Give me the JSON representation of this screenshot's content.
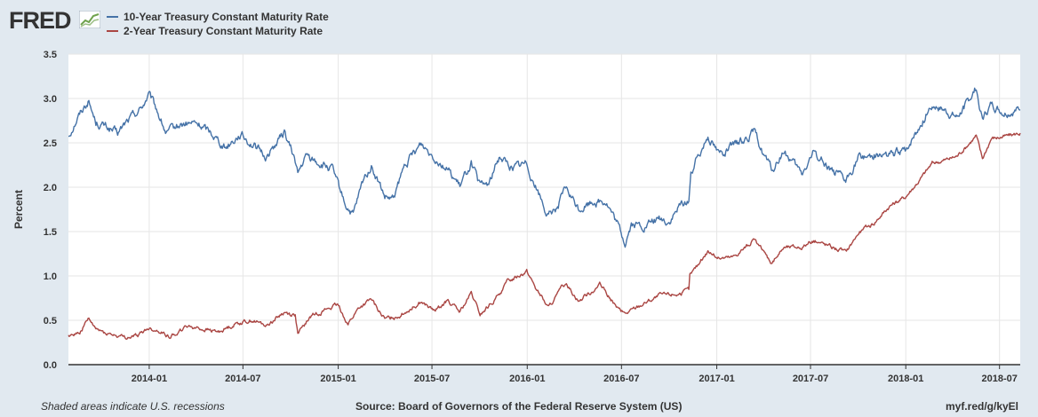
{
  "header": {
    "logo_text": "FRED"
  },
  "legend": [
    {
      "label": "10-Year Treasury Constant Maturity Rate",
      "color": "#4572a7"
    },
    {
      "label": "2-Year Treasury Constant Maturity Rate",
      "color": "#aa4643"
    }
  ],
  "footer": {
    "left": "Shaded areas indicate U.S. recessions",
    "center": "Source: Board of Governors of the Federal Reserve System (US)",
    "right": "myf.red/g/kyEl"
  },
  "chart_data": {
    "type": "line",
    "ylabel": "Percent",
    "ylim": [
      0.0,
      3.5
    ],
    "yticks": [
      "0.0",
      "0.5",
      "1.0",
      "1.5",
      "2.0",
      "2.5",
      "3.0",
      "3.5"
    ],
    "xlim": [
      "2013-07-29",
      "2018-08-10"
    ],
    "xticks": [
      "2014-01",
      "2014-07",
      "2015-01",
      "2015-07",
      "2016-01",
      "2016-07",
      "2017-01",
      "2017-07",
      "2018-01",
      "2018-07"
    ],
    "grid": true,
    "legend_position": "top-left",
    "series": [
      {
        "name": "10-Year Treasury Constant Maturity Rate",
        "color": "#4572a7",
        "points": [
          [
            "2013-07-29",
            2.58
          ],
          [
            "2013-08-15",
            2.78
          ],
          [
            "2013-09-05",
            2.98
          ],
          [
            "2013-09-20",
            2.73
          ],
          [
            "2013-10-10",
            2.68
          ],
          [
            "2013-11-01",
            2.6
          ],
          [
            "2013-11-20",
            2.75
          ],
          [
            "2013-12-15",
            2.88
          ],
          [
            "2013-12-31",
            3.04
          ],
          [
            "2014-01-15",
            2.88
          ],
          [
            "2014-02-03",
            2.6
          ],
          [
            "2014-03-01",
            2.7
          ],
          [
            "2014-04-01",
            2.72
          ],
          [
            "2014-05-01",
            2.62
          ],
          [
            "2014-05-28",
            2.45
          ],
          [
            "2014-06-25",
            2.6
          ],
          [
            "2014-07-20",
            2.48
          ],
          [
            "2014-08-15",
            2.34
          ],
          [
            "2014-09-19",
            2.62
          ],
          [
            "2014-10-10",
            2.3
          ],
          [
            "2014-10-15",
            2.15
          ],
          [
            "2014-11-01",
            2.35
          ],
          [
            "2014-12-01",
            2.25
          ],
          [
            "2014-12-20",
            2.2
          ],
          [
            "2015-01-15",
            1.8
          ],
          [
            "2015-01-30",
            1.68
          ],
          [
            "2015-02-20",
            2.1
          ],
          [
            "2015-03-06",
            2.24
          ],
          [
            "2015-04-01",
            1.88
          ],
          [
            "2015-04-17",
            1.85
          ],
          [
            "2015-05-10",
            2.25
          ],
          [
            "2015-06-10",
            2.49
          ],
          [
            "2015-07-06",
            2.35
          ],
          [
            "2015-08-01",
            2.2
          ],
          [
            "2015-08-24",
            2.0
          ],
          [
            "2015-09-15",
            2.28
          ],
          [
            "2015-10-02",
            2.0
          ],
          [
            "2015-10-20",
            2.05
          ],
          [
            "2015-11-09",
            2.36
          ],
          [
            "2015-12-01",
            2.22
          ],
          [
            "2015-12-31",
            2.27
          ],
          [
            "2016-01-20",
            1.98
          ],
          [
            "2016-02-11",
            1.66
          ],
          [
            "2016-03-01",
            1.8
          ],
          [
            "2016-03-15",
            1.98
          ],
          [
            "2016-04-10",
            1.75
          ],
          [
            "2016-05-10",
            1.85
          ],
          [
            "2016-06-01",
            1.84
          ],
          [
            "2016-06-24",
            1.56
          ],
          [
            "2016-07-08",
            1.37
          ],
          [
            "2016-07-20",
            1.58
          ],
          [
            "2016-08-15",
            1.55
          ],
          [
            "2016-09-10",
            1.65
          ],
          [
            "2016-10-01",
            1.6
          ],
          [
            "2016-10-25",
            1.8
          ],
          [
            "2016-11-08",
            1.86
          ],
          [
            "2016-11-12",
            2.15
          ],
          [
            "2016-12-15",
            2.6
          ],
          [
            "2017-01-05",
            2.38
          ],
          [
            "2017-02-01",
            2.45
          ],
          [
            "2017-03-13",
            2.62
          ],
          [
            "2017-04-18",
            2.18
          ],
          [
            "2017-05-10",
            2.4
          ],
          [
            "2017-06-14",
            2.14
          ],
          [
            "2017-07-07",
            2.39
          ],
          [
            "2017-08-01",
            2.26
          ],
          [
            "2017-09-07",
            2.05
          ],
          [
            "2017-10-01",
            2.33
          ],
          [
            "2017-11-01",
            2.37
          ],
          [
            "2017-12-01",
            2.36
          ],
          [
            "2017-12-31",
            2.41
          ],
          [
            "2018-01-25",
            2.65
          ],
          [
            "2018-02-21",
            2.94
          ],
          [
            "2018-03-20",
            2.85
          ],
          [
            "2018-04-10",
            2.78
          ],
          [
            "2018-05-17",
            3.11
          ],
          [
            "2018-05-29",
            2.77
          ],
          [
            "2018-06-15",
            2.93
          ],
          [
            "2018-07-10",
            2.84
          ],
          [
            "2018-08-10",
            2.87
          ]
        ]
      },
      {
        "name": "2-Year Treasury Constant Maturity Rate",
        "color": "#aa4643",
        "points": [
          [
            "2013-07-29",
            0.33
          ],
          [
            "2013-08-20",
            0.36
          ],
          [
            "2013-09-05",
            0.51
          ],
          [
            "2013-09-20",
            0.4
          ],
          [
            "2013-10-20",
            0.34
          ],
          [
            "2013-11-15",
            0.3
          ],
          [
            "2013-12-10",
            0.33
          ],
          [
            "2013-12-31",
            0.41
          ],
          [
            "2014-01-20",
            0.38
          ],
          [
            "2014-02-10",
            0.32
          ],
          [
            "2014-03-20",
            0.44
          ],
          [
            "2014-04-15",
            0.4
          ],
          [
            "2014-05-15",
            0.37
          ],
          [
            "2014-06-20",
            0.47
          ],
          [
            "2014-07-20",
            0.5
          ],
          [
            "2014-08-15",
            0.44
          ],
          [
            "2014-09-18",
            0.59
          ],
          [
            "2014-10-10",
            0.56
          ],
          [
            "2014-10-15",
            0.34
          ],
          [
            "2014-11-10",
            0.55
          ],
          [
            "2014-12-15",
            0.64
          ],
          [
            "2014-12-31",
            0.67
          ],
          [
            "2015-01-20",
            0.46
          ],
          [
            "2015-02-10",
            0.64
          ],
          [
            "2015-03-06",
            0.73
          ],
          [
            "2015-04-01",
            0.51
          ],
          [
            "2015-05-01",
            0.56
          ],
          [
            "2015-06-10",
            0.71
          ],
          [
            "2015-07-06",
            0.6
          ],
          [
            "2015-08-01",
            0.72
          ],
          [
            "2015-08-24",
            0.59
          ],
          [
            "2015-09-15",
            0.8
          ],
          [
            "2015-10-02",
            0.56
          ],
          [
            "2015-11-01",
            0.74
          ],
          [
            "2015-11-25",
            0.94
          ],
          [
            "2015-12-31",
            1.06
          ],
          [
            "2016-01-20",
            0.84
          ],
          [
            "2016-02-11",
            0.64
          ],
          [
            "2016-03-15",
            0.92
          ],
          [
            "2016-04-10",
            0.72
          ],
          [
            "2016-05-20",
            0.9
          ],
          [
            "2016-06-24",
            0.63
          ],
          [
            "2016-07-08",
            0.57
          ],
          [
            "2016-08-15",
            0.7
          ],
          [
            "2016-09-15",
            0.78
          ],
          [
            "2016-10-20",
            0.8
          ],
          [
            "2016-11-08",
            0.84
          ],
          [
            "2016-11-10",
            1.0
          ],
          [
            "2016-12-15",
            1.28
          ],
          [
            "2017-01-05",
            1.2
          ],
          [
            "2017-02-01",
            1.21
          ],
          [
            "2017-03-13",
            1.4
          ],
          [
            "2017-04-18",
            1.15
          ],
          [
            "2017-05-10",
            1.32
          ],
          [
            "2017-06-14",
            1.33
          ],
          [
            "2017-07-07",
            1.4
          ],
          [
            "2017-08-01",
            1.35
          ],
          [
            "2017-09-07",
            1.27
          ],
          [
            "2017-10-01",
            1.48
          ],
          [
            "2017-11-01",
            1.6
          ],
          [
            "2017-12-01",
            1.79
          ],
          [
            "2017-12-31",
            1.89
          ],
          [
            "2018-01-25",
            2.06
          ],
          [
            "2018-02-21",
            2.27
          ],
          [
            "2018-03-20",
            2.31
          ],
          [
            "2018-04-10",
            2.35
          ],
          [
            "2018-05-17",
            2.58
          ],
          [
            "2018-05-29",
            2.32
          ],
          [
            "2018-06-15",
            2.55
          ],
          [
            "2018-07-10",
            2.57
          ],
          [
            "2018-08-10",
            2.61
          ]
        ]
      }
    ]
  }
}
